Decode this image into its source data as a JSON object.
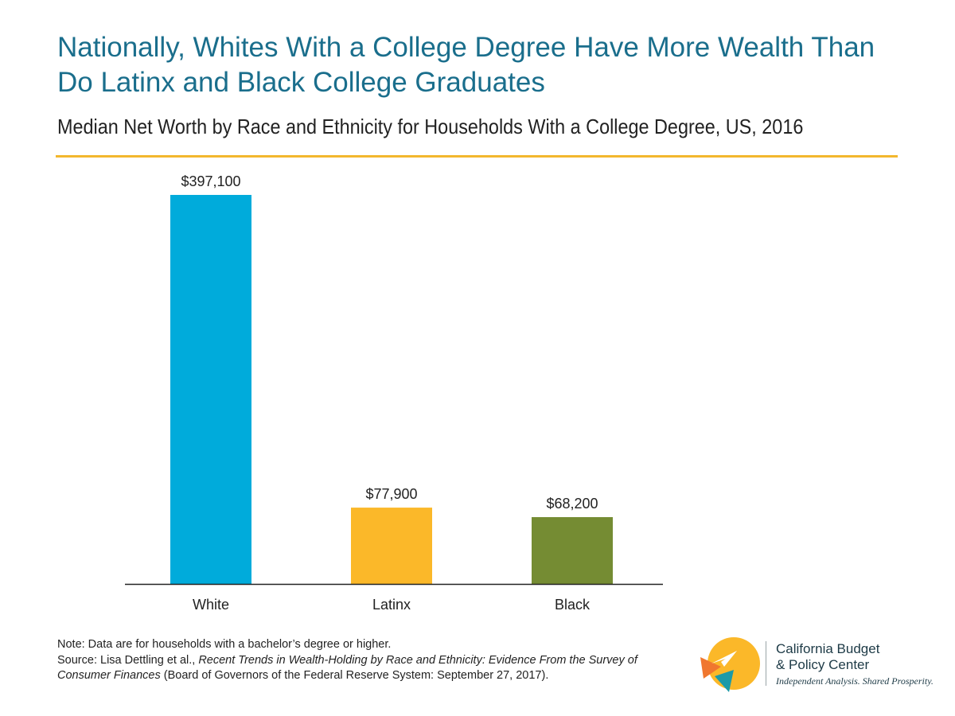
{
  "header": {
    "title": "Nationally, Whites With a College Degree Have More Wealth Than Do Latinx and Black College Graduates",
    "subtitle": "Median Net Worth by Race and Ethnicity for Households With a College Degree, US, 2016"
  },
  "colors": {
    "title": "#1a6e8c",
    "rule": "#f3b72d",
    "white_bar": "#00abdb",
    "latinx_bar": "#fbb829",
    "black_bar": "#758c33"
  },
  "chart_data": {
    "type": "bar",
    "title": "Nationally, Whites With a College Degree Have More Wealth Than Do Latinx and Black College Graduates",
    "subtitle": "Median Net Worth by Race and Ethnicity for Households With a College Degree, US, 2016",
    "categories": [
      "White",
      "Latinx",
      "Black"
    ],
    "values": [
      397100,
      77900,
      68200
    ],
    "value_labels": [
      "$397,100",
      "$77,900",
      "$68,200"
    ],
    "bar_colors": [
      "#00abdb",
      "#fbb829",
      "#758c33"
    ],
    "ylim": [
      0,
      400000
    ],
    "grid": false,
    "legend": "none"
  },
  "footer": {
    "note": "Note: Data are for households with a bachelor’s degree or higher.",
    "source_prefix": "Source: Lisa Dettling et al., ",
    "source_title": "Recent Trends in Wealth-Holding by Race and Ethnicity: Evidence From the Survey of Consumer Finances",
    "source_suffix": " (Board of Governors of the Federal Reserve System: September 27, 2017)."
  },
  "logo": {
    "name_line1": "California Budget",
    "name_line2": "& Policy Center",
    "tagline": "Independent Analysis. Shared Prosperity."
  }
}
